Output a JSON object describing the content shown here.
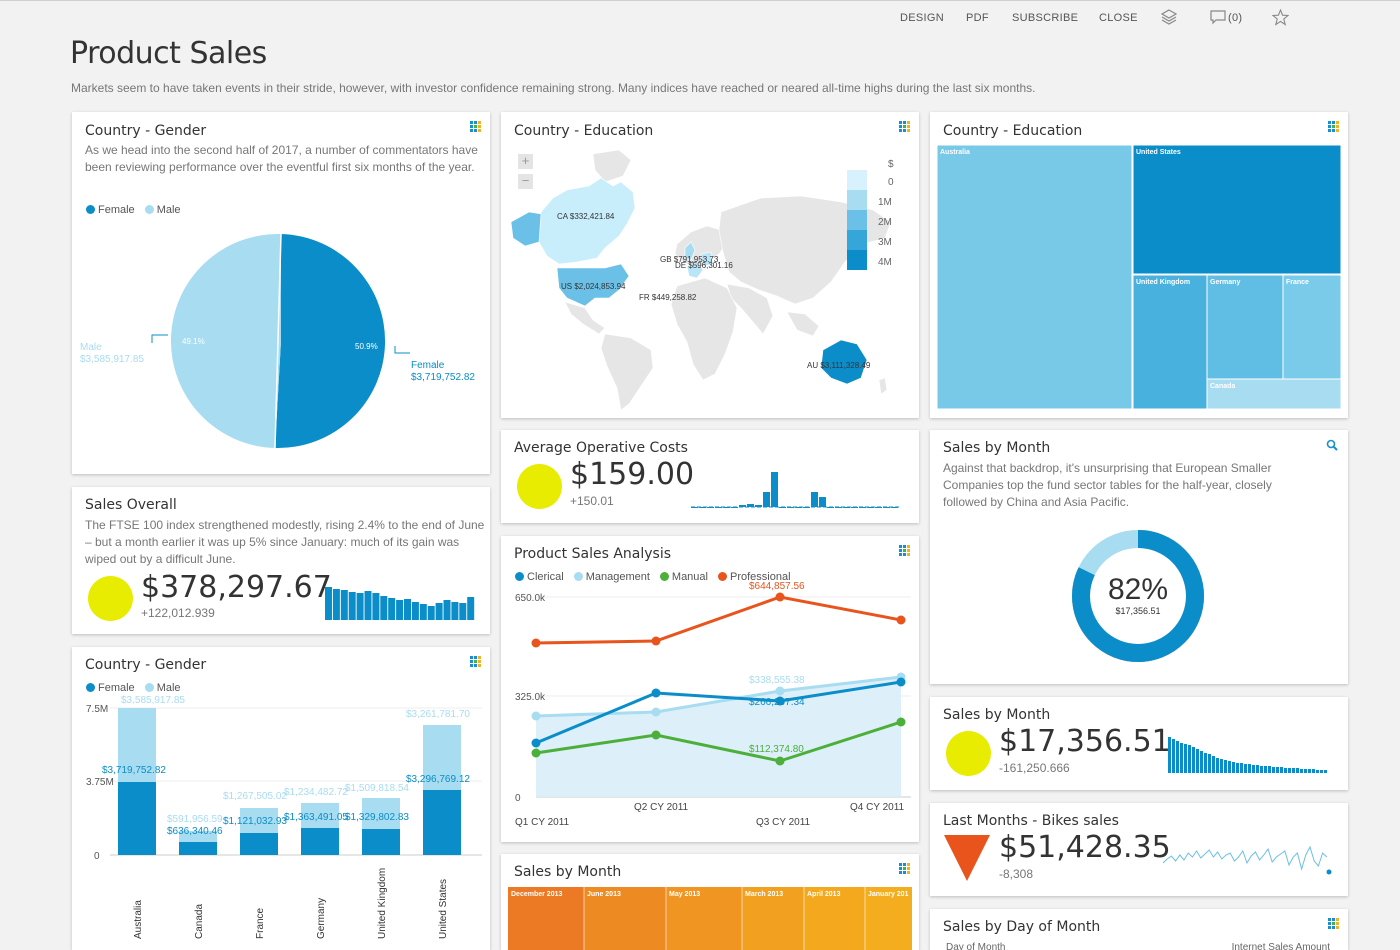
{
  "toolbar": {
    "design": "DESIGN",
    "pdf": "PDF",
    "subscribe": "SUBSCRIBE",
    "close": "CLOSE",
    "comments": "(0)"
  },
  "page": {
    "title": "Product Sales",
    "subtitle": "Markets seem to have taken events in their stride, however, with investor confidence remaining strong. Many indices have reached or neared all-time highs during the last six months."
  },
  "colors": {
    "dark_blue": "#0a8dc8",
    "light_blue": "#a7dcf1",
    "orange": "#e8541c",
    "green": "#4caf3a",
    "yellow": "#e8ec00"
  },
  "gender_pie": {
    "title": "Country - Gender",
    "description": "As we head into the second half of 2017, a number of commentators have been reviewing performance over the eventful first six months of the year.",
    "legend": [
      "Female",
      "Male"
    ],
    "male_label": "Male",
    "male_value": "$3,585,917.85",
    "female_label": "Female",
    "female_value": "$3,719,752.82",
    "male_pct": "49.1%",
    "female_pct": "50.9%"
  },
  "map": {
    "title": "Country - Education",
    "zoom_in": "+",
    "zoom_out": "−",
    "scale_labels": [
      "$",
      "0",
      "1M",
      "2M",
      "3M",
      "4M"
    ],
    "labels": {
      "ca": "CA $332,421.84",
      "us": "US $2,024,853.94",
      "gb": "GB $791,953.73",
      "de": "DE $596,301.16",
      "fr": "FR $449,258.82",
      "au": "AU $3,111,328.49"
    }
  },
  "treemap": {
    "title": "Country - Education",
    "labels": [
      "Australia",
      "United States",
      "United Kingdom",
      "Germany",
      "France",
      "Canada"
    ]
  },
  "avg_costs": {
    "title": "Average Operative Costs",
    "value": "$159.00",
    "delta": "+150.01"
  },
  "sales_overall": {
    "title": "Sales Overall",
    "description": "The FTSE 100 index strengthened modestly, rising 2.4% to the end of June – but a month earlier it was up 5% since January: much of its gain was wiped out by a difficult June.",
    "value": "$378,297.67",
    "delta": "+122,012.939"
  },
  "product_analysis": {
    "title": "Product Sales Analysis",
    "legend": [
      "Clerical",
      "Management",
      "Manual",
      "Professional"
    ],
    "y_ticks": [
      "650.0k",
      "325.0k",
      "0"
    ],
    "x_ticks": [
      "Q1 CY 2011",
      "Q2 CY 2011",
      "Q3 CY 2011",
      "Q4 CY 2011"
    ],
    "labels": {
      "professional": "$644,857.56",
      "management": "$338,555.38",
      "clerical": "$266,297.34",
      "manual": "$112,374.80"
    }
  },
  "sales_month_donut": {
    "title": "Sales by Month",
    "description": "Against that backdrop, it's unsurprising that European Smaller Companies top the fund sector tables for the half-year, closely followed by China and Asia Pacific.",
    "percent": "82%",
    "value": "$17,356.51"
  },
  "gender_bars": {
    "title": "Country - Gender",
    "legend": [
      "Female",
      "Male"
    ],
    "y_ticks": [
      "7.5M",
      "3.75M",
      "0"
    ],
    "countries": [
      "Australia",
      "Canada",
      "France",
      "Germany",
      "United Kingdom",
      "United States"
    ],
    "female_labels": [
      "$3,719,752.82",
      "$636,340.46",
      "$1,121,032.93",
      "$1,363,491.05",
      "$1,329,802.83",
      "$3,296,769.12"
    ],
    "male_labels": [
      "$3,585,917.85",
      "$591,956.59",
      "$1,267,505.02",
      "$1,234,482.72",
      "$1,509,818.54",
      "$3,261,781.70"
    ]
  },
  "sales_month_kpi": {
    "title": "Sales by Month",
    "value": "$17,356.51",
    "delta": "-161,250.666"
  },
  "bikes": {
    "title": "Last Months - Bikes sales",
    "value": "$51,428.35",
    "delta": "-8,308"
  },
  "sales_month_heat": {
    "title": "Sales by Month",
    "cells": [
      "December 2013",
      "June 2013",
      "May 2013",
      "March 2013",
      "April 2013",
      "January 201"
    ]
  },
  "sales_day": {
    "title": "Sales by Day of Month",
    "col1": "Day of Month",
    "col2": "Internet Sales Amount"
  }
}
